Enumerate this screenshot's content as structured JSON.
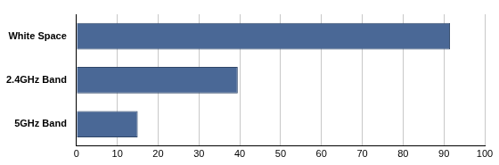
{
  "chart_data": {
    "type": "bar",
    "orientation": "horizontal",
    "categories": [
      "White Space",
      "2.4GHz Band",
      "5GHz Band"
    ],
    "values": [
      91.5,
      39.5,
      15
    ],
    "color": "#4a6896",
    "xlim": [
      0,
      100
    ],
    "xticks": [
      0,
      10,
      20,
      30,
      40,
      50,
      60,
      70,
      80,
      90,
      100
    ],
    "grid": true
  }
}
